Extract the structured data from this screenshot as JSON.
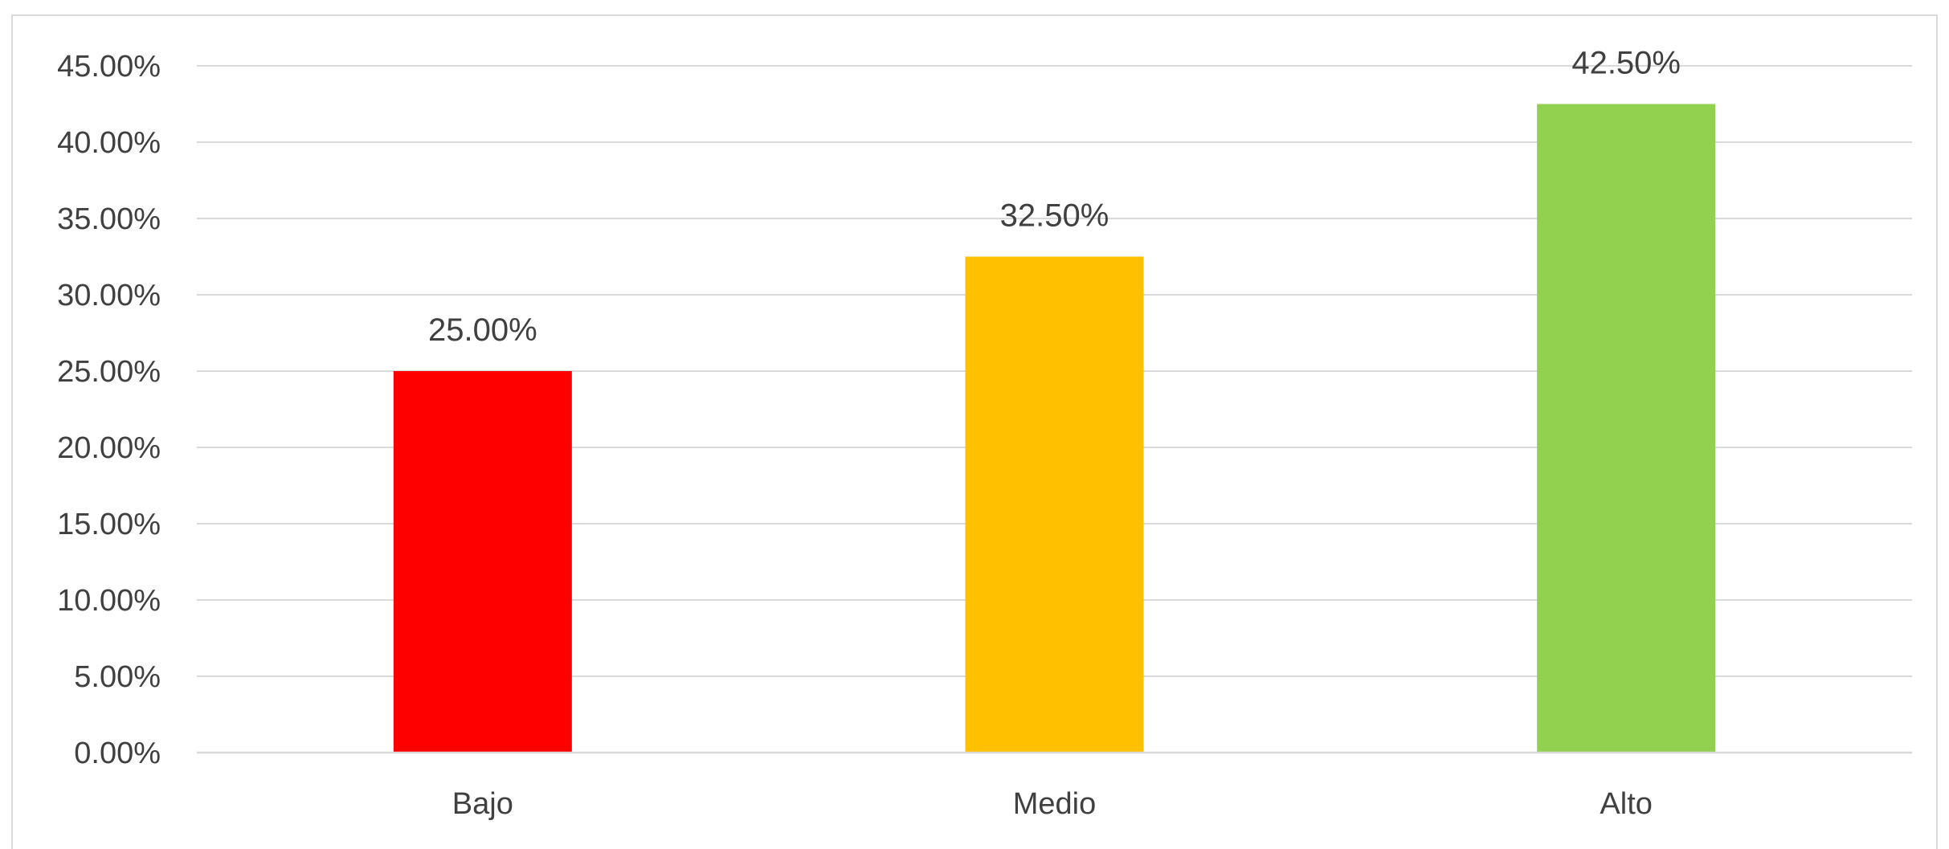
{
  "chart_data": {
    "type": "bar",
    "title": "",
    "xlabel": "",
    "ylabel": "",
    "categories": [
      "Bajo",
      "Medio",
      "Alto"
    ],
    "values": [
      25.0,
      32.5,
      42.5
    ],
    "data_labels": [
      "25.00%",
      "32.50%",
      "42.50%"
    ],
    "colors": [
      "#ff0000",
      "#ffc000",
      "#92d050"
    ],
    "ylim": [
      0,
      45
    ],
    "y_ticks": [
      0,
      5,
      10,
      15,
      20,
      25,
      30,
      35,
      40,
      45
    ],
    "y_tick_labels": [
      "0.00%",
      "5.00%",
      "10.00%",
      "15.00%",
      "20.00%",
      "25.00%",
      "30.00%",
      "35.00%",
      "40.00%",
      "45.00%"
    ],
    "grid": true,
    "legend": "none",
    "gridline_color": "#d9d9d9",
    "text_color": "#404040"
  }
}
